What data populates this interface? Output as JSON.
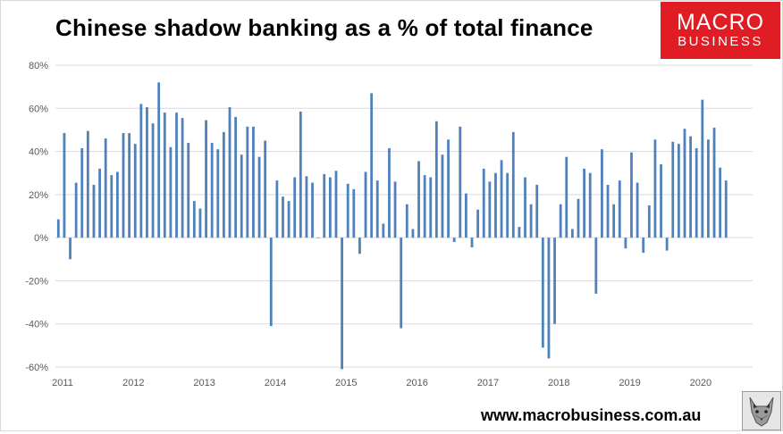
{
  "header": {
    "title": "Chinese shadow banking as a % of total finance"
  },
  "logo": {
    "line1": "MACRO",
    "line2": "BUSINESS"
  },
  "footer": {
    "url": "www.macrobusiness.com.au"
  },
  "colors": {
    "bar": "#4f81bd",
    "grid": "#d9d9d9",
    "logo_bg": "#e01d24",
    "text": "#595959"
  },
  "icons": {
    "logo_badge": "wolf-icon"
  },
  "chart_data": {
    "type": "bar",
    "title": "Chinese shadow banking as a % of total finance",
    "xlabel": "",
    "ylabel": "",
    "ylim": [
      -60,
      80
    ],
    "yticks": [
      "80%",
      "60%",
      "40%",
      "20%",
      "0%",
      "-20%",
      "-40%",
      "-60%"
    ],
    "year_labels": [
      "2011",
      "2012",
      "2013",
      "2014",
      "2015",
      "2016",
      "2017",
      "2018",
      "2019",
      "2020"
    ],
    "start": "2011-01",
    "frequency": "monthly",
    "grid": true,
    "legend": "none",
    "values": [
      8.5,
      48.5,
      -10,
      25.5,
      41.5,
      49.5,
      24.5,
      32,
      46,
      29,
      30.5,
      48.5,
      48.5,
      43.5,
      62,
      60.5,
      53,
      72,
      58,
      42,
      58,
      55.5,
      44,
      17,
      13.5,
      54.5,
      44,
      41,
      49,
      60.5,
      56,
      38.5,
      51.5,
      51.5,
      37.5,
      45,
      -41,
      26.5,
      19,
      17,
      28,
      58.5,
      28.5,
      25.5,
      0,
      29.5,
      28,
      31,
      -61,
      25,
      22.5,
      -7.5,
      30.5,
      67,
      26.5,
      6.5,
      41.5,
      26,
      -42,
      15.5,
      4,
      35.5,
      29,
      28,
      54,
      38.5,
      45.5,
      -2,
      51.5,
      20.5,
      -4.5,
      13,
      32,
      26,
      30,
      36,
      30,
      49,
      5,
      28,
      15.5,
      24.5,
      -51,
      -56,
      -40,
      15.5,
      37.5,
      4,
      18,
      32,
      30,
      -26,
      41,
      24.5,
      15.5,
      26.5,
      -5,
      39.5,
      25.5,
      -7,
      15,
      45.5,
      34,
      -6,
      44.5,
      43.5,
      50.5,
      47,
      41.5,
      64,
      45.5,
      51,
      32.5,
      26.5
    ]
  }
}
